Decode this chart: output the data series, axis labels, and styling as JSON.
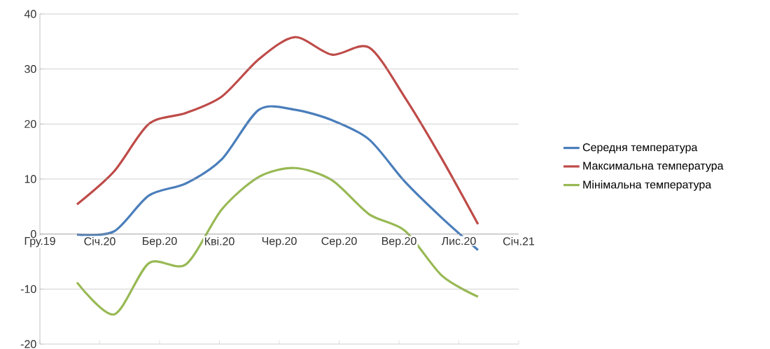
{
  "chart_data": {
    "type": "line",
    "x": [
      "2020-01-01",
      "2020-02-01",
      "2020-03-01",
      "2020-04-01",
      "2020-05-01",
      "2020-06-01",
      "2020-07-01",
      "2020-08-01",
      "2020-09-01",
      "2020-10-01",
      "2020-11-01",
      "2020-12-01"
    ],
    "series": [
      {
        "name": "Середня температура",
        "color": "#4a7ebb",
        "values": [
          -0.1,
          0.5,
          7.0,
          9.2,
          13.6,
          22.6,
          22.6,
          20.7,
          17.2,
          9.5,
          2.9,
          -2.9
        ]
      },
      {
        "name": "Максимальна температура",
        "color": "#be4b48",
        "values": [
          5.4,
          11.4,
          20.0,
          22.0,
          25.0,
          31.8,
          35.8,
          32.6,
          33.9,
          24.8,
          13.6,
          1.8
        ]
      },
      {
        "name": "Мінімальна температура",
        "color": "#98b954",
        "values": [
          -8.8,
          -14.6,
          -5.3,
          -5.5,
          4.5,
          10.4,
          12.0,
          9.8,
          3.6,
          0.6,
          -7.6,
          -11.4
        ]
      }
    ],
    "xlim": [
      "2019-12-01",
      "2021-01-04"
    ],
    "xticks": [
      {
        "value": "2019-12-01",
        "label": "Гру.19"
      },
      {
        "value": "2020-01-20",
        "label": "Січ.20"
      },
      {
        "value": "2020-03-10",
        "label": "Бер.20"
      },
      {
        "value": "2020-04-29",
        "label": "Кві.20"
      },
      {
        "value": "2020-06-18",
        "label": "Чер.20"
      },
      {
        "value": "2020-08-07",
        "label": "Сер.20"
      },
      {
        "value": "2020-09-26",
        "label": "Вер.20"
      },
      {
        "value": "2020-11-15",
        "label": "Лис.20"
      },
      {
        "value": "2021-01-04",
        "label": "Січ.21"
      }
    ],
    "ylim": [
      -20,
      40
    ],
    "yticks": [
      -20,
      -10,
      0,
      10,
      20,
      30,
      40
    ],
    "grid": "y",
    "legend": "right",
    "marker": "none",
    "line_style": "solid"
  }
}
